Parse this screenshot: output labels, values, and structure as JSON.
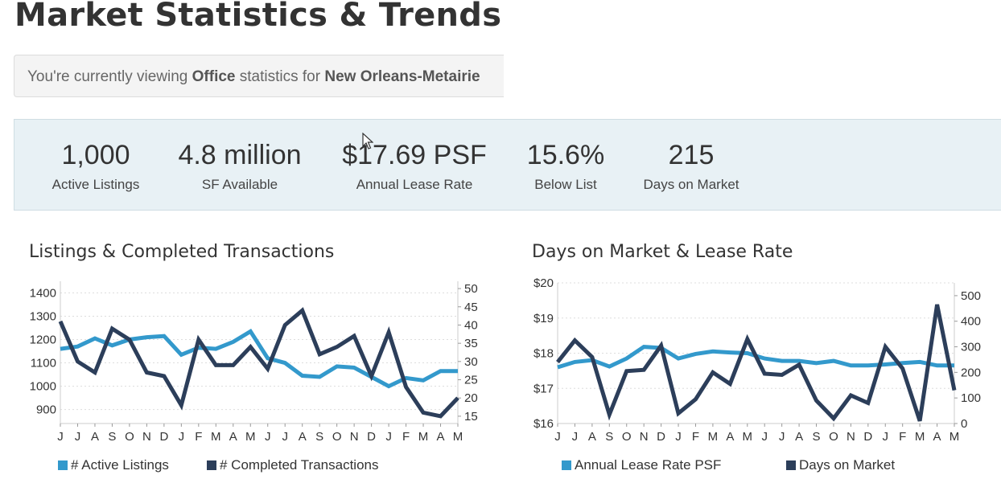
{
  "page": {
    "title": "Market Statistics & Trends"
  },
  "viewing": {
    "prefix": "You're currently viewing ",
    "property_type": "Office",
    "middle": " statistics for ",
    "market": "New Orleans-Metairie"
  },
  "stats": [
    {
      "value": "1,000",
      "label": "Active Listings"
    },
    {
      "value": "4.8 million",
      "label": "SF Available"
    },
    {
      "value": "$17.69 PSF",
      "label": "Annual Lease Rate"
    },
    {
      "value": "15.6%",
      "label": "Below List"
    },
    {
      "value": "215",
      "label": "Days on Market"
    }
  ],
  "colors": {
    "series_light": "#3399cc",
    "series_dark": "#2c3e5a"
  },
  "chart_data": [
    {
      "type": "line",
      "title": "Listings & Completed Transactions",
      "categories": [
        "J",
        "J",
        "A",
        "S",
        "O",
        "N",
        "D",
        "J",
        "F",
        "M",
        "A",
        "M",
        "J",
        "J",
        "A",
        "S",
        "O",
        "N",
        "D",
        "J",
        "F",
        "M",
        "A",
        "M"
      ],
      "left_axis": {
        "ticks": [
          900,
          1000,
          1100,
          1200,
          1300,
          1400
        ],
        "ylim": [
          840,
          1450
        ]
      },
      "right_axis": {
        "ticks": [
          15,
          20,
          25,
          30,
          35,
          40,
          45,
          50
        ],
        "ylim": [
          13,
          52
        ]
      },
      "grid": true,
      "legend_position": "bottom",
      "series": [
        {
          "name": "# Active Listings",
          "axis": "left",
          "color": "#3399cc",
          "values": [
            1160,
            1170,
            1205,
            1175,
            1200,
            1210,
            1215,
            1135,
            1165,
            1160,
            1190,
            1235,
            1120,
            1100,
            1045,
            1040,
            1085,
            1080,
            1040,
            1000,
            1035,
            1025,
            1065,
            1065
          ]
        },
        {
          "name": "# Completed Transactions",
          "axis": "right",
          "color": "#2c3e5a",
          "values": [
            41,
            30,
            27,
            39,
            36,
            27,
            26,
            18,
            36,
            29,
            29,
            34,
            28,
            40,
            44,
            32,
            34,
            37,
            26,
            38,
            23,
            16,
            15,
            20
          ]
        }
      ]
    },
    {
      "type": "line",
      "title": "Days on Market & Lease Rate",
      "categories": [
        "J",
        "J",
        "A",
        "S",
        "O",
        "N",
        "D",
        "J",
        "F",
        "M",
        "A",
        "M",
        "J",
        "J",
        "A",
        "S",
        "O",
        "N",
        "D",
        "J",
        "F",
        "M",
        "A",
        "M"
      ],
      "left_axis": {
        "ticks": [
          "$16",
          "$17",
          "$18",
          "$19",
          "$20"
        ],
        "ylim": [
          16,
          20
        ]
      },
      "right_axis": {
        "ticks": [
          0,
          100,
          200,
          300,
          400,
          500
        ],
        "ylim": [
          0,
          550
        ]
      },
      "grid": true,
      "legend_position": "bottom",
      "series": [
        {
          "name": "Annual Lease Rate PSF",
          "axis": "left",
          "color": "#3399cc",
          "values": [
            17.6,
            17.75,
            17.8,
            17.62,
            17.85,
            18.18,
            18.15,
            17.85,
            17.98,
            18.05,
            18.02,
            18.0,
            17.85,
            17.78,
            17.78,
            17.72,
            17.78,
            17.65,
            17.65,
            17.68,
            17.72,
            17.75,
            17.65,
            17.65
          ]
        },
        {
          "name": "Days on Market",
          "axis": "right",
          "color": "#2c3e5a",
          "values": [
            240,
            325,
            260,
            35,
            205,
            210,
            305,
            40,
            95,
            200,
            155,
            330,
            195,
            190,
            230,
            90,
            20,
            110,
            80,
            300,
            215,
            10,
            465,
            130
          ]
        }
      ]
    }
  ]
}
